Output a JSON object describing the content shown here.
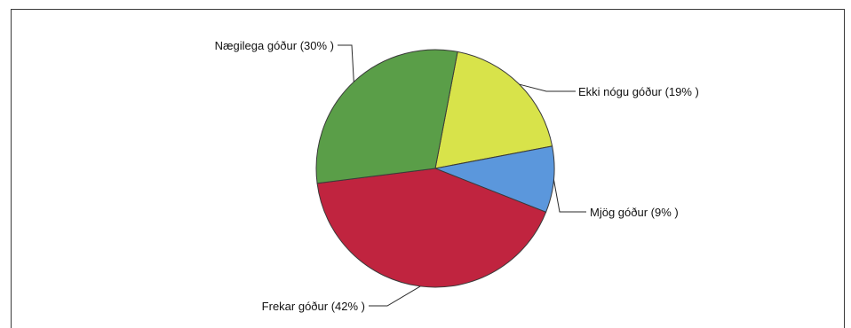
{
  "chart_data": {
    "type": "pie",
    "title": "",
    "slices": [
      {
        "label": "Ekki nógu góður (19% )",
        "value": 19,
        "color": "#d8e34a"
      },
      {
        "label": "Mjög góður (9% )",
        "value": 9,
        "color": "#5b97dc"
      },
      {
        "label": "Frekar góður (42% )",
        "value": 42,
        "color": "#c0243f"
      },
      {
        "label": "Nægilega góður (30% )",
        "value": 30,
        "color": "#5a9e48"
      }
    ]
  }
}
